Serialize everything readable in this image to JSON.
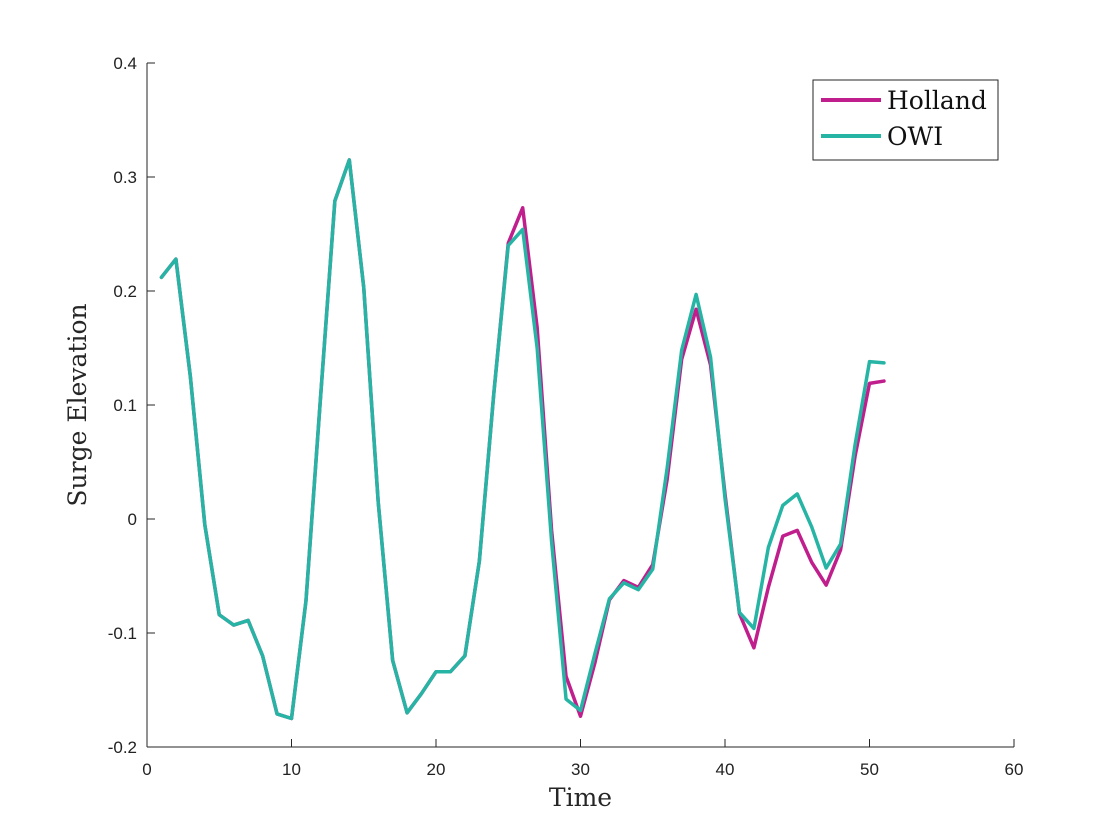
{
  "chart_data": {
    "type": "line",
    "xlabel": "Time",
    "ylabel": "Surge Elevation",
    "xlim": [
      0,
      60
    ],
    "ylim": [
      -0.2,
      0.4
    ],
    "xticks": [
      0,
      10,
      20,
      30,
      40,
      50,
      60
    ],
    "yticks": [
      -0.2,
      -0.1,
      0,
      0.1,
      0.2,
      0.3,
      0.4
    ],
    "xtick_labels": [
      "0",
      "10",
      "20",
      "30",
      "40",
      "50",
      "60"
    ],
    "ytick_labels": [
      "-0.2",
      "-0.1",
      "0",
      "0.1",
      "0.2",
      "0.3",
      "0.4"
    ],
    "grid": false,
    "legend_position": "top-right",
    "x": [
      1,
      2,
      3,
      4,
      5,
      6,
      7,
      8,
      9,
      10,
      11,
      12,
      13,
      14,
      15,
      16,
      17,
      18,
      19,
      20,
      21,
      22,
      23,
      24,
      25,
      26,
      27,
      28,
      29,
      30,
      31,
      32,
      33,
      34,
      35,
      36,
      37,
      38,
      39,
      40,
      41,
      42,
      43,
      44,
      45,
      46,
      47,
      48,
      49,
      50,
      51
    ],
    "series": [
      {
        "name": "Holland",
        "color": "#c01e8c",
        "values": [
          0.212,
          0.228,
          0.125,
          -0.005,
          -0.084,
          -0.093,
          -0.089,
          -0.12,
          -0.171,
          -0.175,
          -0.072,
          0.105,
          0.279,
          0.315,
          0.203,
          0.015,
          -0.124,
          -0.17,
          -0.153,
          -0.134,
          -0.134,
          -0.12,
          -0.037,
          0.11,
          0.242,
          0.273,
          0.168,
          -0.01,
          -0.138,
          -0.173,
          -0.126,
          -0.071,
          -0.054,
          -0.06,
          -0.04,
          0.035,
          0.14,
          0.184,
          0.135,
          0.022,
          -0.083,
          -0.113,
          -0.06,
          -0.015,
          -0.01,
          -0.038,
          -0.058,
          -0.027,
          0.055,
          0.119,
          0.121
        ]
      },
      {
        "name": "OWI",
        "color": "#26b5a5",
        "values": [
          0.212,
          0.228,
          0.125,
          -0.005,
          -0.084,
          -0.093,
          -0.089,
          -0.12,
          -0.171,
          -0.175,
          -0.072,
          0.105,
          0.279,
          0.315,
          0.203,
          0.015,
          -0.124,
          -0.17,
          -0.153,
          -0.134,
          -0.134,
          -0.12,
          -0.037,
          0.11,
          0.24,
          0.254,
          0.15,
          -0.02,
          -0.158,
          -0.168,
          -0.118,
          -0.07,
          -0.056,
          -0.062,
          -0.044,
          0.045,
          0.148,
          0.197,
          0.142,
          0.018,
          -0.082,
          -0.096,
          -0.025,
          0.012,
          0.022,
          -0.007,
          -0.043,
          -0.022,
          0.065,
          0.138,
          0.137
        ]
      }
    ]
  }
}
